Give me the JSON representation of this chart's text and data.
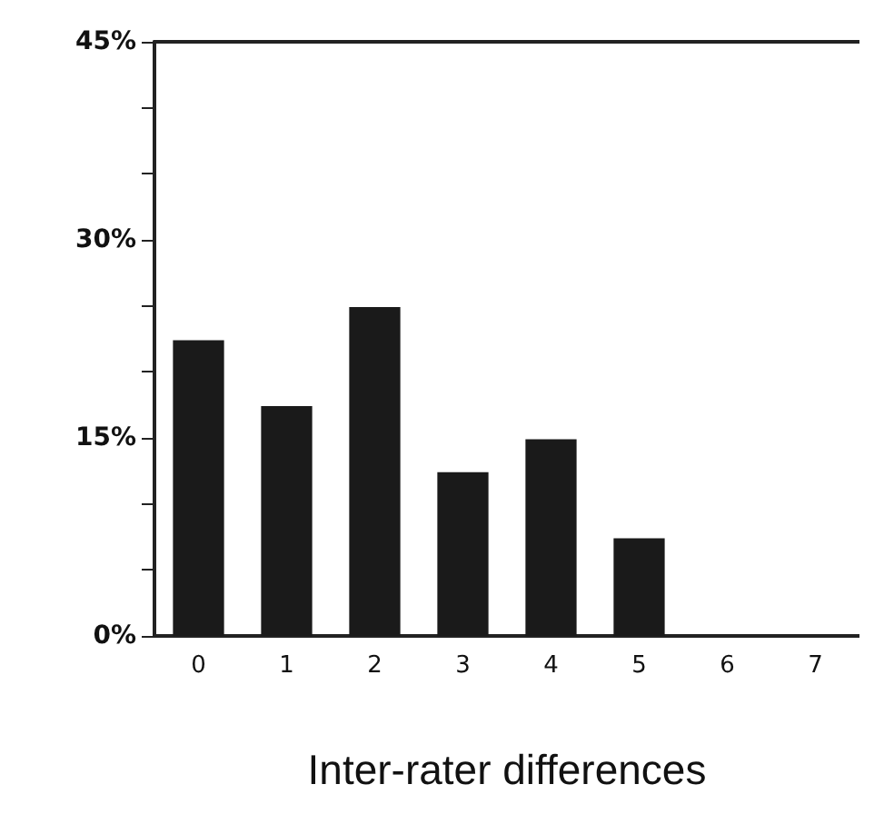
{
  "chart_data": {
    "type": "bar",
    "xlabel": "Inter-rater differences",
    "categories": [
      "0",
      "1",
      "2",
      "3",
      "4",
      "5",
      "6",
      "7"
    ],
    "values": [
      22.4,
      17.4,
      24.9,
      12.4,
      14.9,
      7.4,
      0,
      0
    ],
    "color": "#1a1a1a",
    "ylim": [
      0,
      45
    ],
    "yticks": [
      {
        "value": 0,
        "label": "0%"
      },
      {
        "value": 5,
        "label": null
      },
      {
        "value": 10,
        "label": null
      },
      {
        "value": 15,
        "label": "15%"
      },
      {
        "value": 20,
        "label": null
      },
      {
        "value": 25,
        "label": null
      },
      {
        "value": 30,
        "label": "30%"
      },
      {
        "value": 35,
        "label": null
      },
      {
        "value": 40,
        "label": null
      },
      {
        "value": 45,
        "label": "45%"
      }
    ],
    "grid": false
  }
}
